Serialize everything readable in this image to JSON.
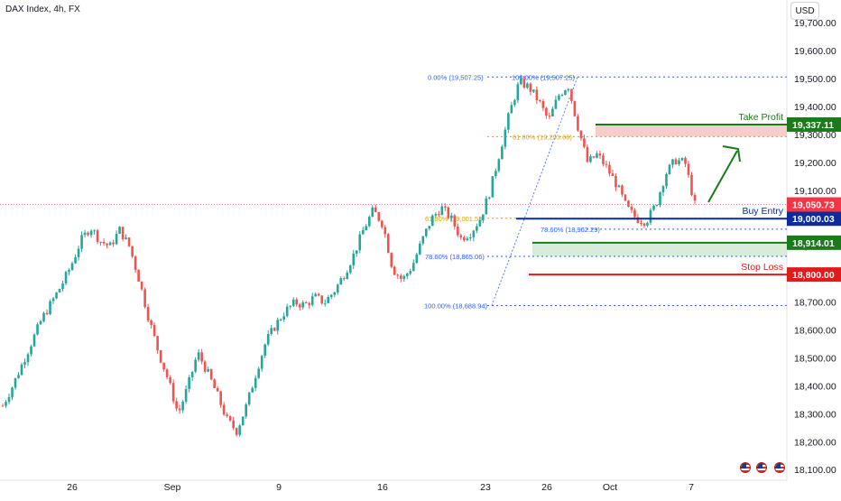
{
  "header": {
    "symbol_title": "DAX Index, 4h, FX",
    "currency": "USD"
  },
  "colors": {
    "up": "#26a69a",
    "down": "#ef5350",
    "take_profit": "#1b7a1b",
    "entry": "#0d2b9a",
    "support": "#1b7a1b",
    "stop_loss": "#e01b1b",
    "fib": "#2962ff",
    "fib_golden": "#d4a017",
    "current_price": "#f23645"
  },
  "chart_data": {
    "type": "candlestick",
    "instrument": "DAX Index",
    "timeframe": "4h",
    "x_axis": {
      "tick_labels": [
        "26",
        "Sep",
        "9",
        "16",
        "23",
        "26",
        "Oct",
        "7"
      ]
    },
    "y_axis": {
      "range": [
        18070,
        19770
      ],
      "tick_values": [
        18100,
        18200,
        18300,
        18400,
        18500,
        18600,
        18700,
        18800,
        18900,
        19000,
        19100,
        19200,
        19300,
        19400,
        19500,
        19600,
        19700
      ],
      "tick_labels": [
        "18,100.00",
        "18,200.00",
        "18,300.00",
        "18,400.00",
        "18,500.00",
        "18,600.00",
        "18,700.00",
        "18,800.00",
        "18,900.00",
        "19,000.00",
        "19,100.00",
        "19,200.00",
        "19,300.00",
        "19,400.00",
        "19,500.00",
        "19,600.00",
        "19,700.00"
      ]
    },
    "price_path": [
      18330,
      18400,
      18480,
      18560,
      18640,
      18700,
      18760,
      18830,
      18920,
      18970,
      18920,
      18900,
      18960,
      18900,
      18780,
      18640,
      18520,
      18420,
      18300,
      18400,
      18520,
      18450,
      18370,
      18280,
      18240,
      18330,
      18450,
      18560,
      18620,
      18670,
      18700,
      18690,
      18720,
      18700,
      18740,
      18800,
      18870,
      18960,
      19030,
      18980,
      18820,
      18780,
      18830,
      18920,
      19000,
      19040,
      19000,
      18930,
      18950,
      19000,
      19100,
      19240,
      19380,
      19490,
      19470,
      19420,
      19350,
      19440,
      19480,
      19330,
      19200,
      19230,
      19180,
      19120,
      19040,
      19000,
      18990,
      19050,
      19160,
      19210,
      19200,
      19050
    ],
    "current_price": {
      "value": 19050.73,
      "label": "19,050.73"
    },
    "fibonacci": {
      "retracement_high": [
        {
          "label": "0.00% (19,507.25)",
          "value": 19507.25
        },
        {
          "label": "100.00% (19,507.25)",
          "value": 19507.25
        },
        {
          "label": "61.80% (19,293.66)",
          "value": 19293.66
        }
      ],
      "retracement_low": [
        {
          "label": "61.80% (19,001.53)",
          "value": 19001.53
        },
        {
          "label": "78.60% (18,962.29)",
          "value": 18962.29
        },
        {
          "label": "78.60% (18,865.06)",
          "value": 18865.06
        },
        {
          "label": "100.00% (18,688.94)",
          "value": 18688.94
        }
      ]
    },
    "levels": [
      {
        "name": "Take Profit",
        "value": 19337.11,
        "label": "19,337.11",
        "color": "#1b7a1b"
      },
      {
        "name": "Buy Entry",
        "value": 19000.03,
        "label": "19,000.03",
        "color": "#0d2b9a"
      },
      {
        "name": "",
        "value": 18914.01,
        "label": "18,914.01",
        "color": "#1b7a1b"
      },
      {
        "name": "Stop Loss",
        "value": 18800.0,
        "label": "18,800.00",
        "color": "#e01b1b"
      }
    ],
    "zones": [
      {
        "name": "resistance-zone",
        "from": 19293.66,
        "to": 19337.11,
        "color": "#f4b6b6"
      },
      {
        "name": "support-zone",
        "from": 18865.06,
        "to": 18914.01,
        "color": "#c8e6c9"
      }
    ],
    "projection": "upward-arrow",
    "grid": false
  }
}
